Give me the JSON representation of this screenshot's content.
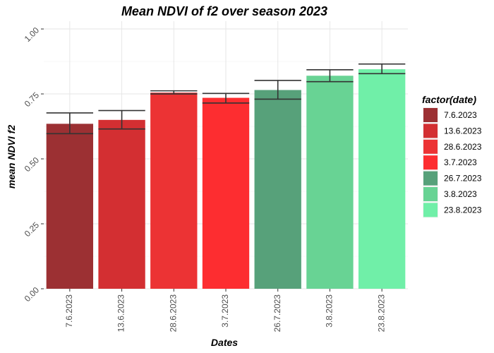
{
  "chart_data": {
    "type": "bar",
    "title": "Mean NDVI of f2 over season 2023",
    "xlabel": "Dates",
    "ylabel": "mean NDVI f2",
    "categories": [
      "7.6.2023",
      "13.6.2023",
      "28.6.2023",
      "3.7.2023",
      "26.7.2023",
      "3.8.2023",
      "23.8.2023"
    ],
    "values": [
      0.635,
      0.65,
      0.755,
      0.735,
      0.765,
      0.82,
      0.845
    ],
    "error_low": [
      0.597,
      0.615,
      0.75,
      0.715,
      0.73,
      0.797,
      0.828
    ],
    "error_high": [
      0.677,
      0.686,
      0.762,
      0.752,
      0.802,
      0.843,
      0.865
    ],
    "colors": [
      "#9c3033",
      "#d32f32",
      "#ec3334",
      "#fd2d30",
      "#57a17a",
      "#68d394",
      "#70efa8"
    ],
    "ylim": [
      0,
      1.03
    ],
    "yticks": [
      0.0,
      0.25,
      0.5,
      0.75,
      1.0
    ],
    "ytick_labels": [
      "0.00",
      "0.25",
      "0.50",
      "0.75",
      "1.00"
    ],
    "grid": true,
    "legend": {
      "title": "factor(date)",
      "position": "right",
      "entries": [
        "7.6.2023",
        "13.6.2023",
        "28.6.2023",
        "3.7.2023",
        "26.7.2023",
        "3.8.2023",
        "23.8.2023"
      ]
    }
  }
}
